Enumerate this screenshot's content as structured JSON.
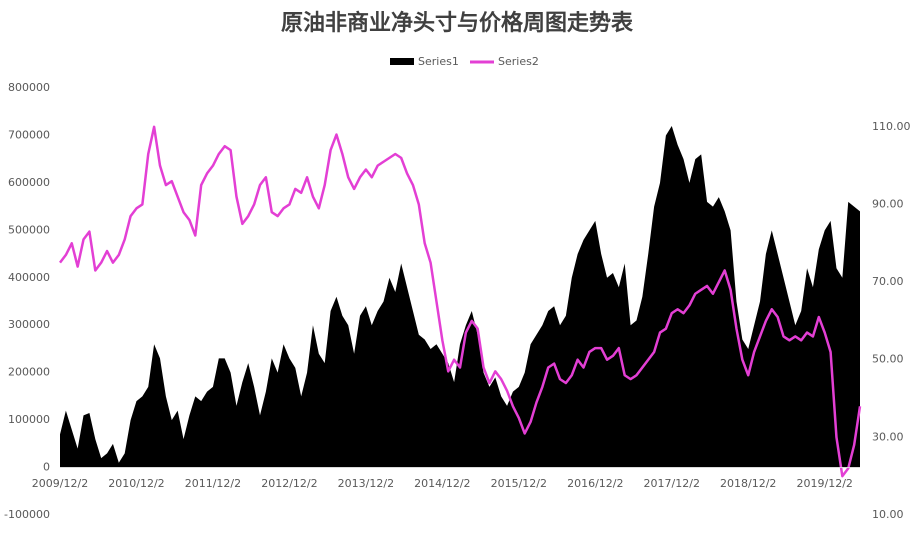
{
  "chart_data": {
    "type": "area-line",
    "title": "原油非商业净头寸与价格周图走势表",
    "categories": [
      "2009/12/2",
      null,
      null,
      null,
      null,
      null,
      null,
      null,
      null,
      null,
      null,
      null,
      null,
      "2010/12/2",
      null,
      null,
      null,
      null,
      null,
      null,
      null,
      null,
      null,
      null,
      null,
      null,
      "2011/12/2",
      null,
      null,
      null,
      null,
      null,
      null,
      null,
      null,
      null,
      null,
      null,
      null,
      "2012/12/2",
      null,
      null,
      null,
      null,
      null,
      null,
      null,
      null,
      null,
      null,
      null,
      null,
      "2013/12/2",
      null,
      null,
      null,
      null,
      null,
      null,
      null,
      null,
      null,
      null,
      null,
      null,
      "2014/12/2",
      null,
      null,
      null,
      null,
      null,
      null,
      null,
      null,
      null,
      null,
      null,
      null,
      "2015/12/2",
      null,
      null,
      null,
      null,
      null,
      null,
      null,
      null,
      null,
      null,
      null,
      null,
      "2016/12/2",
      null,
      null,
      null,
      null,
      null,
      null,
      null,
      null,
      null,
      null,
      null,
      null,
      "2017/12/2",
      null,
      null,
      null,
      null,
      null,
      null,
      null,
      null,
      null,
      null,
      null,
      null,
      "2018/12/2",
      null,
      null,
      null,
      null,
      null,
      null,
      null,
      null,
      null,
      null,
      null,
      null,
      "2019/12/2",
      null,
      null,
      null,
      null,
      null,
      null
    ],
    "series": [
      {
        "name": "Series1",
        "color": "#000000",
        "values": [
          70000,
          120000,
          80000,
          40000,
          110000,
          115000,
          60000,
          20000,
          30000,
          50000,
          10000,
          30000,
          100000,
          140000,
          150000,
          170000,
          260000,
          230000,
          150000,
          100000,
          120000,
          60000,
          110000,
          150000,
          140000,
          160000,
          170000,
          230000,
          230000,
          200000,
          130000,
          180000,
          220000,
          170000,
          110000,
          160000,
          230000,
          200000,
          260000,
          230000,
          210000,
          150000,
          200000,
          300000,
          240000,
          220000,
          330000,
          360000,
          320000,
          300000,
          240000,
          320000,
          340000,
          300000,
          330000,
          350000,
          400000,
          370000,
          430000,
          380000,
          330000,
          280000,
          270000,
          250000,
          260000,
          240000,
          220000,
          180000,
          260000,
          300000,
          330000,
          280000,
          200000,
          170000,
          190000,
          150000,
          130000,
          160000,
          170000,
          200000,
          260000,
          280000,
          300000,
          330000,
          340000,
          300000,
          320000,
          400000,
          450000,
          480000,
          500000,
          520000,
          450000,
          400000,
          410000,
          380000,
          430000,
          300000,
          310000,
          360000,
          450000,
          550000,
          600000,
          700000,
          720000,
          680000,
          650000,
          600000,
          650000,
          660000,
          560000,
          550000,
          570000,
          540000,
          500000,
          350000,
          270000,
          250000,
          300000,
          350000,
          450000,
          500000,
          450000,
          400000,
          350000,
          300000,
          330000,
          420000,
          380000,
          460000,
          500000,
          520000,
          420000,
          400000,
          560000,
          550000,
          540000
        ]
      },
      {
        "name": "Series2",
        "color": "#e33fd4",
        "axis": "y2",
        "values": [
          75,
          77,
          80,
          74,
          81,
          83,
          73,
          75,
          78,
          75,
          77,
          81,
          87,
          89,
          90,
          103,
          110,
          100,
          95,
          96,
          92,
          88,
          86,
          82,
          95,
          98,
          100,
          103,
          105,
          104,
          92,
          85,
          87,
          90,
          95,
          97,
          88,
          87,
          89,
          90,
          94,
          93,
          97,
          92,
          89,
          95,
          104,
          108,
          103,
          97,
          94,
          97,
          99,
          97,
          100,
          101,
          102,
          103,
          102,
          98,
          95,
          90,
          80,
          75,
          65,
          55,
          47,
          50,
          48,
          57,
          60,
          58,
          48,
          44,
          47,
          45,
          42,
          38,
          35,
          31,
          34,
          39,
          43,
          48,
          49,
          45,
          44,
          46,
          50,
          48,
          52,
          53,
          53,
          50,
          51,
          53,
          46,
          45,
          46,
          48,
          50,
          52,
          57,
          58,
          62,
          63,
          62,
          64,
          67,
          68,
          69,
          67,
          70,
          73,
          68,
          58,
          50,
          46,
          52,
          56,
          60,
          63,
          61,
          56,
          55,
          56,
          55,
          57,
          56,
          61,
          57,
          52,
          30,
          20,
          22,
          28,
          38
        ]
      }
    ],
    "ylim": [
      -100000,
      800000
    ],
    "yticks": [
      -100000,
      0,
      100000,
      200000,
      300000,
      400000,
      500000,
      600000,
      700000,
      800000
    ],
    "y2lim": [
      10,
      120
    ],
    "y2ticks": [
      {
        "value": 10,
        "label": "10.00"
      },
      {
        "value": 30,
        "label": "30.00"
      },
      {
        "value": 50,
        "label": "50.00"
      },
      {
        "value": 70,
        "label": "70.00"
      },
      {
        "value": 90,
        "label": "90.00"
      },
      {
        "value": 110,
        "label": "110.00"
      }
    ],
    "grid": false,
    "legend": "top"
  }
}
